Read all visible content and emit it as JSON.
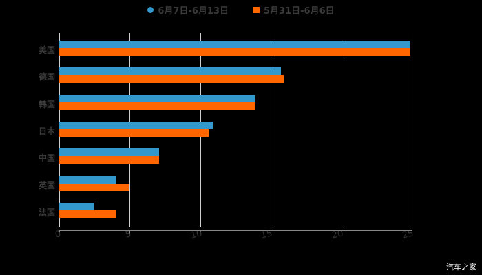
{
  "chart_data": {
    "type": "bar",
    "orientation": "horizontal",
    "title": "",
    "xlabel": "",
    "ylabel": "",
    "xlim": [
      0,
      25
    ],
    "x_ticks": [
      "0",
      "5",
      "10",
      "15",
      "20",
      "25"
    ],
    "grid": true,
    "legend_position": "top",
    "categories": [
      "美国",
      "德国",
      "韩国",
      "日本",
      "中国",
      "英国",
      "法国"
    ],
    "series": [
      {
        "name": "6月7日-6月13日",
        "color": "#3399cc",
        "values": [
          24.9,
          15.7,
          13.9,
          10.9,
          7.1,
          4.0,
          2.5
        ]
      },
      {
        "name": "5月31日-6月6日",
        "color": "#ff6600",
        "values": [
          24.9,
          15.9,
          13.9,
          10.6,
          7.1,
          5.0,
          4.0
        ]
      }
    ]
  },
  "legend": [
    {
      "label": "6月7日-6月13日",
      "color": "#3399cc",
      "shape": "circle"
    },
    {
      "label": "5月31日-6月6日",
      "color": "#ff6600",
      "shape": "square"
    }
  ],
  "watermark": "汽车之家"
}
